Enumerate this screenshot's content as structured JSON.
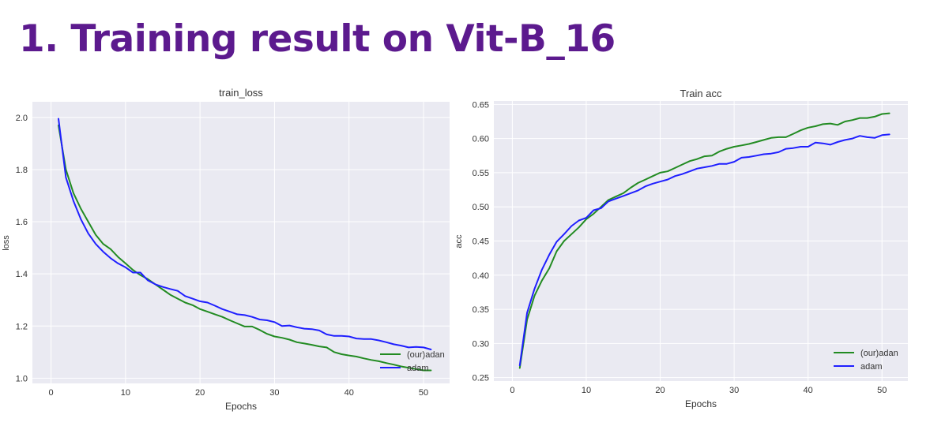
{
  "page": {
    "title": "1.  Training result on Vit-B_16"
  },
  "chart_data": [
    {
      "type": "line",
      "title": "train_loss",
      "xlabel": "Epochs",
      "ylabel": "loss",
      "xlim": [
        -2.5,
        53.5
      ],
      "ylim": [
        0.98,
        2.06
      ],
      "xticks": [
        0,
        10,
        20,
        30,
        40,
        50
      ],
      "yticks": [
        1.0,
        1.2,
        1.4,
        1.6,
        1.8,
        2.0
      ],
      "ytick_labels": [
        "1.0",
        "1.2",
        "1.4",
        "1.6",
        "1.8",
        "2.0"
      ],
      "grid": true,
      "legend": "lower-right",
      "series": [
        {
          "name": "(our)adan",
          "color": "#228b22",
          "x": [
            1,
            2,
            3,
            4,
            5,
            6,
            7,
            8,
            9,
            10,
            11,
            12,
            13,
            14,
            15,
            16,
            17,
            18,
            19,
            20,
            21,
            22,
            23,
            24,
            25,
            26,
            27,
            28,
            29,
            30,
            31,
            32,
            33,
            34,
            35,
            36,
            37,
            38,
            39,
            40,
            41,
            42,
            43,
            44,
            45,
            46,
            47,
            48,
            49,
            50,
            51
          ],
          "y": [
            1.97,
            1.8,
            1.71,
            1.65,
            1.6,
            1.55,
            1.515,
            1.495,
            1.465,
            1.44,
            1.415,
            1.395,
            1.38,
            1.36,
            1.34,
            1.32,
            1.305,
            1.29,
            1.28,
            1.265,
            1.255,
            1.245,
            1.235,
            1.222,
            1.21,
            1.198,
            1.198,
            1.185,
            1.17,
            1.16,
            1.155,
            1.148,
            1.138,
            1.133,
            1.128,
            1.122,
            1.118,
            1.1,
            1.092,
            1.087,
            1.083,
            1.076,
            1.07,
            1.065,
            1.058,
            1.052,
            1.045,
            1.04,
            1.035,
            1.03,
            1.03
          ]
        },
        {
          "name": "adam",
          "color": "#1f1fff",
          "x": [
            1,
            2,
            3,
            4,
            5,
            6,
            7,
            8,
            9,
            10,
            11,
            12,
            13,
            14,
            15,
            16,
            17,
            18,
            19,
            20,
            21,
            22,
            23,
            24,
            25,
            26,
            27,
            28,
            29,
            30,
            31,
            32,
            33,
            34,
            35,
            36,
            37,
            38,
            39,
            40,
            41,
            42,
            43,
            44,
            45,
            46,
            47,
            48,
            49,
            50,
            51
          ],
          "y": [
            1.995,
            1.77,
            1.68,
            1.61,
            1.555,
            1.515,
            1.485,
            1.46,
            1.44,
            1.425,
            1.405,
            1.405,
            1.375,
            1.36,
            1.35,
            1.342,
            1.335,
            1.315,
            1.305,
            1.295,
            1.29,
            1.278,
            1.265,
            1.255,
            1.245,
            1.242,
            1.235,
            1.225,
            1.222,
            1.215,
            1.2,
            1.202,
            1.195,
            1.19,
            1.188,
            1.183,
            1.168,
            1.162,
            1.162,
            1.16,
            1.152,
            1.15,
            1.15,
            1.145,
            1.138,
            1.13,
            1.125,
            1.118,
            1.12,
            1.118,
            1.11
          ]
        }
      ]
    },
    {
      "type": "line",
      "title": "Train acc",
      "xlabel": "Epochs",
      "ylabel": "acc",
      "xlim": [
        -2.5,
        53.5
      ],
      "ylim": [
        0.245,
        0.655
      ],
      "xticks": [
        0,
        10,
        20,
        30,
        40,
        50
      ],
      "yticks": [
        0.25,
        0.3,
        0.35,
        0.4,
        0.45,
        0.5,
        0.55,
        0.6,
        0.65
      ],
      "ytick_labels": [
        "0.25",
        "0.30",
        "0.35",
        "0.40",
        "0.45",
        "0.50",
        "0.55",
        "0.60",
        "0.65"
      ],
      "grid": true,
      "legend": "lower-right",
      "series": [
        {
          "name": "(our)adan",
          "color": "#228b22",
          "x": [
            1,
            2,
            3,
            4,
            5,
            6,
            7,
            8,
            9,
            10,
            11,
            12,
            13,
            14,
            15,
            16,
            17,
            18,
            19,
            20,
            21,
            22,
            23,
            24,
            25,
            26,
            27,
            28,
            29,
            30,
            31,
            32,
            33,
            34,
            35,
            36,
            37,
            38,
            39,
            40,
            41,
            42,
            43,
            44,
            45,
            46,
            47,
            48,
            49,
            50,
            51
          ],
          "y": [
            0.264,
            0.335,
            0.37,
            0.392,
            0.41,
            0.435,
            0.45,
            0.46,
            0.47,
            0.482,
            0.49,
            0.5,
            0.51,
            0.515,
            0.52,
            0.528,
            0.535,
            0.54,
            0.545,
            0.55,
            0.552,
            0.557,
            0.562,
            0.567,
            0.57,
            0.574,
            0.575,
            0.581,
            0.585,
            0.588,
            0.59,
            0.592,
            0.595,
            0.598,
            0.601,
            0.602,
            0.602,
            0.607,
            0.612,
            0.616,
            0.618,
            0.621,
            0.622,
            0.62,
            0.625,
            0.627,
            0.63,
            0.63,
            0.632,
            0.636,
            0.637
          ]
        },
        {
          "name": "adam",
          "color": "#1f1fff",
          "x": [
            1,
            2,
            3,
            4,
            5,
            6,
            7,
            8,
            9,
            10,
            11,
            12,
            13,
            14,
            15,
            16,
            17,
            18,
            19,
            20,
            21,
            22,
            23,
            24,
            25,
            26,
            27,
            28,
            29,
            30,
            31,
            32,
            33,
            34,
            35,
            36,
            37,
            38,
            39,
            40,
            41,
            42,
            43,
            44,
            45,
            46,
            47,
            48,
            49,
            50,
            51
          ],
          "y": [
            0.268,
            0.345,
            0.38,
            0.408,
            0.43,
            0.449,
            0.46,
            0.472,
            0.48,
            0.484,
            0.495,
            0.498,
            0.508,
            0.512,
            0.516,
            0.52,
            0.524,
            0.53,
            0.534,
            0.537,
            0.54,
            0.545,
            0.548,
            0.552,
            0.556,
            0.558,
            0.56,
            0.563,
            0.563,
            0.566,
            0.572,
            0.573,
            0.575,
            0.577,
            0.578,
            0.58,
            0.585,
            0.586,
            0.588,
            0.588,
            0.594,
            0.593,
            0.591,
            0.595,
            0.598,
            0.6,
            0.604,
            0.602,
            0.601,
            0.605,
            0.606
          ]
        }
      ]
    }
  ]
}
